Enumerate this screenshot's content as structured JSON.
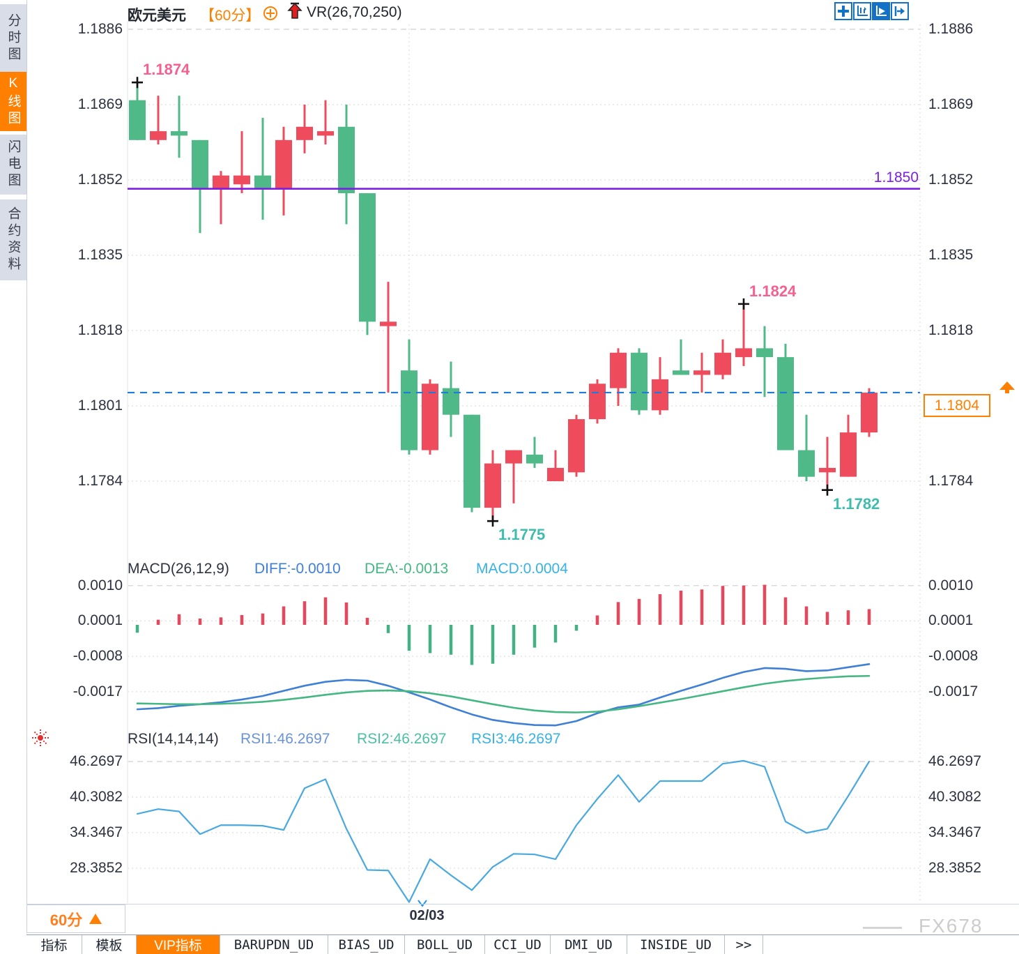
{
  "header": {
    "symbol": "欧元美元",
    "period_tag": "【60分】",
    "indicator_label": "VR(26,70,250)"
  },
  "sidebar": {
    "tabs": [
      {
        "label": "分时图",
        "active": false
      },
      {
        "label": "K线图",
        "active": true
      },
      {
        "label": "闪电图",
        "active": false
      },
      {
        "label": "合约资料",
        "active": false
      }
    ]
  },
  "colors": {
    "up_red": "#ee4c5c",
    "down_green": "#4fb987",
    "accent_orange": "#ff8000",
    "purple_line": "#7d1fe0",
    "current_price_blue": "#1d7be0",
    "diff_blue": "#3f7fd6",
    "dea_green": "#45b783",
    "macd_cyan": "#38b2e3",
    "rsi_line_blue": "#49a8e0",
    "annotation_pink": "#f2618f",
    "annotation_teal": "#3fbcab"
  },
  "chart_data": [
    {
      "type": "candlestick",
      "title": "欧元美元 60分 K线",
      "y_ticks": [
        "1.1886",
        "1.1869",
        "1.1852",
        "1.1835",
        "1.1818",
        "1.1801",
        "1.1784"
      ],
      "ylim": [
        1.1772,
        1.1888
      ],
      "grid": "dotted horizontal, dashed top row, vertical dotted at date tick",
      "candles_format": [
        "high",
        "body_top",
        "body_bottom",
        "low",
        "color g=green r=red"
      ],
      "candles": [
        [
          1.1874,
          1.187,
          1.1861,
          1.1861,
          "g"
        ],
        [
          1.1871,
          1.1863,
          1.1861,
          1.186,
          "r"
        ],
        [
          1.1871,
          1.1863,
          1.1862,
          1.1857,
          "g"
        ],
        [
          1.1861,
          1.1861,
          1.185,
          1.184,
          "g"
        ],
        [
          1.1854,
          1.1853,
          1.185,
          1.1842,
          "r"
        ],
        [
          1.1863,
          1.1853,
          1.1851,
          1.1849,
          "r"
        ],
        [
          1.1866,
          1.1853,
          1.185,
          1.1843,
          "g"
        ],
        [
          1.1864,
          1.1861,
          1.185,
          1.1844,
          "r"
        ],
        [
          1.1869,
          1.1864,
          1.1861,
          1.1858,
          "r"
        ],
        [
          1.187,
          1.1863,
          1.1862,
          1.186,
          "r"
        ],
        [
          1.1869,
          1.1864,
          1.1849,
          1.1842,
          "g"
        ],
        [
          1.1849,
          1.1849,
          1.182,
          1.1817,
          "g"
        ],
        [
          1.1829,
          1.182,
          1.1819,
          1.1804,
          "r"
        ],
        [
          1.1816,
          1.1809,
          1.1791,
          1.179,
          "g"
        ],
        [
          1.1807,
          1.1806,
          1.1791,
          1.179,
          "r"
        ],
        [
          1.1811,
          1.1805,
          1.1799,
          1.1794,
          "g"
        ],
        [
          1.1799,
          1.1799,
          1.1778,
          1.1777,
          "g"
        ],
        [
          1.1791,
          1.1788,
          1.1778,
          1.1775,
          "r"
        ],
        [
          1.1791,
          1.1791,
          1.1788,
          1.1779,
          "r"
        ],
        [
          1.1794,
          1.179,
          1.1788,
          1.1787,
          "g"
        ],
        [
          1.1791,
          1.1787,
          1.1784,
          1.1784,
          "r"
        ],
        [
          1.1799,
          1.1798,
          1.1786,
          1.1785,
          "r"
        ],
        [
          1.1807,
          1.1806,
          1.1798,
          1.1797,
          "r"
        ],
        [
          1.1814,
          1.1813,
          1.1805,
          1.1801,
          "r"
        ],
        [
          1.1814,
          1.1813,
          1.18,
          1.1799,
          "g"
        ],
        [
          1.1812,
          1.1807,
          1.18,
          1.1799,
          "r"
        ],
        [
          1.1816,
          1.1809,
          1.1808,
          1.1808,
          "g"
        ],
        [
          1.1813,
          1.1809,
          1.1808,
          1.1804,
          "r"
        ],
        [
          1.1816,
          1.1813,
          1.1808,
          1.1807,
          "r"
        ],
        [
          1.1824,
          1.1814,
          1.1812,
          1.181,
          "r"
        ],
        [
          1.1819,
          1.1814,
          1.1812,
          1.1803,
          "g"
        ],
        [
          1.1815,
          1.1812,
          1.1791,
          1.1791,
          "g"
        ],
        [
          1.1799,
          1.1791,
          1.1785,
          1.1784,
          "g"
        ],
        [
          1.1794,
          1.1787,
          1.1786,
          1.1782,
          "r"
        ],
        [
          1.1799,
          1.1795,
          1.1785,
          1.1785,
          "r"
        ],
        [
          1.1805,
          1.1804,
          1.1795,
          1.1794,
          "r"
        ]
      ],
      "hlines": [
        {
          "price": 1.185,
          "label": "1.1850",
          "style": "solid",
          "color": "purple"
        },
        {
          "price": 1.1804,
          "label": "1.1804",
          "style": "dashed",
          "color": "blue",
          "badge": true
        }
      ],
      "annotations": [
        {
          "text": "1.1874",
          "candle": 0,
          "price": 1.1874,
          "color": "pink",
          "placement": "above"
        },
        {
          "text": "1.1824",
          "candle": 29,
          "price": 1.1824,
          "color": "pink",
          "placement": "above"
        },
        {
          "text": "1.1775",
          "candle": 17,
          "price": 1.1775,
          "color": "teal",
          "placement": "below"
        },
        {
          "text": "1.1782",
          "candle": 33,
          "price": 1.1782,
          "color": "teal",
          "placement": "below"
        }
      ],
      "x_axis": {
        "date_label": "02/03",
        "date_candle_index": 13
      }
    },
    {
      "type": "bar+line",
      "title": "MACD(26,12,9)",
      "legend": {
        "diff_label": "DIFF:-0.0010",
        "dea_label": "DEA:-0.0013",
        "macd_label": "MACD:0.0004"
      },
      "y_ticks": [
        "0.0010",
        "0.0001",
        "-0.0008",
        "-0.0017"
      ],
      "bars": [
        -0.0002,
        0.00013,
        0.00027,
        0.00016,
        0.00019,
        0.00025,
        0.00029,
        0.00047,
        0.0006,
        0.0007,
        0.00057,
        0.00018,
        -0.00021,
        -0.00066,
        -0.00072,
        -0.00076,
        -0.00102,
        -0.00099,
        -0.00076,
        -0.00058,
        -0.00045,
        -0.00015,
        0.00024,
        0.00058,
        0.00066,
        0.00078,
        0.00087,
        0.0009,
        0.00099,
        0.001,
        0.00102,
        0.0007,
        0.00047,
        0.00033,
        0.00037,
        0.0004
      ],
      "diff": [
        -0.00215,
        -0.00212,
        -0.00206,
        -0.00202,
        -0.00197,
        -0.0019,
        -0.00181,
        -0.00168,
        -0.00155,
        -0.00145,
        -0.0014,
        -0.00142,
        -0.00155,
        -0.00172,
        -0.0019,
        -0.0021,
        -0.00228,
        -0.00242,
        -0.0025,
        -0.00255,
        -0.00256,
        -0.00245,
        -0.00225,
        -0.0021,
        -0.00203,
        -0.00185,
        -0.00168,
        -0.00152,
        -0.00135,
        -0.0012,
        -0.0011,
        -0.00112,
        -0.00118,
        -0.00116,
        -0.00108,
        -0.001
      ],
      "dea": [
        -0.002,
        -0.00201,
        -0.00202,
        -0.00202,
        -0.00201,
        -0.00199,
        -0.00196,
        -0.00191,
        -0.00185,
        -0.00178,
        -0.00172,
        -0.00168,
        -0.00167,
        -0.00169,
        -0.00174,
        -0.00182,
        -0.00192,
        -0.00202,
        -0.00211,
        -0.00218,
        -0.00222,
        -0.00223,
        -0.00221,
        -0.00215,
        -0.00207,
        -0.00198,
        -0.00189,
        -0.00179,
        -0.00169,
        -0.00159,
        -0.0015,
        -0.00143,
        -0.00138,
        -0.00134,
        -0.00131,
        -0.0013
      ]
    },
    {
      "type": "line",
      "title": "RSI(14,14,14)",
      "legend": {
        "rsi1_label": "RSI1:46.2697",
        "rsi2_label": "RSI2:46.2697",
        "rsi3_label": "RSI3:46.2697"
      },
      "y_ticks": [
        "46.2697",
        "40.3082",
        "34.3467",
        "28.3852"
      ],
      "rsi": [
        37.5,
        38.3,
        37.9,
        34.1,
        35.6,
        35.6,
        35.5,
        34.8,
        41.8,
        43.3,
        35.0,
        28.1,
        28.0,
        22.7,
        29.9,
        27.2,
        24.7,
        28.6,
        30.8,
        30.7,
        29.9,
        35.6,
        40.0,
        44.0,
        39.5,
        43.0,
        43.0,
        43.0,
        45.9,
        46.4,
        45.4,
        36.2,
        34.3,
        35.0,
        40.5,
        46.2697
      ]
    }
  ],
  "price_badge": {
    "value": "1.1804"
  },
  "purple_line_label": "1.1850",
  "bottom": {
    "period": "60分",
    "date": "02/03",
    "watermark": "FX678",
    "tabs": [
      {
        "label": "指标",
        "active": false
      },
      {
        "label": "模板",
        "active": false
      },
      {
        "label": "VIP指标",
        "active": true
      },
      {
        "label": "BARUPDN_UD",
        "active": false
      },
      {
        "label": "BIAS_UD",
        "active": false
      },
      {
        "label": "BOLL_UD",
        "active": false
      },
      {
        "label": "CCI_UD",
        "active": false
      },
      {
        "label": "DMI_UD",
        "active": false
      },
      {
        "label": "INSIDE_UD",
        "active": false
      },
      {
        "label": ">>",
        "active": false
      }
    ]
  }
}
